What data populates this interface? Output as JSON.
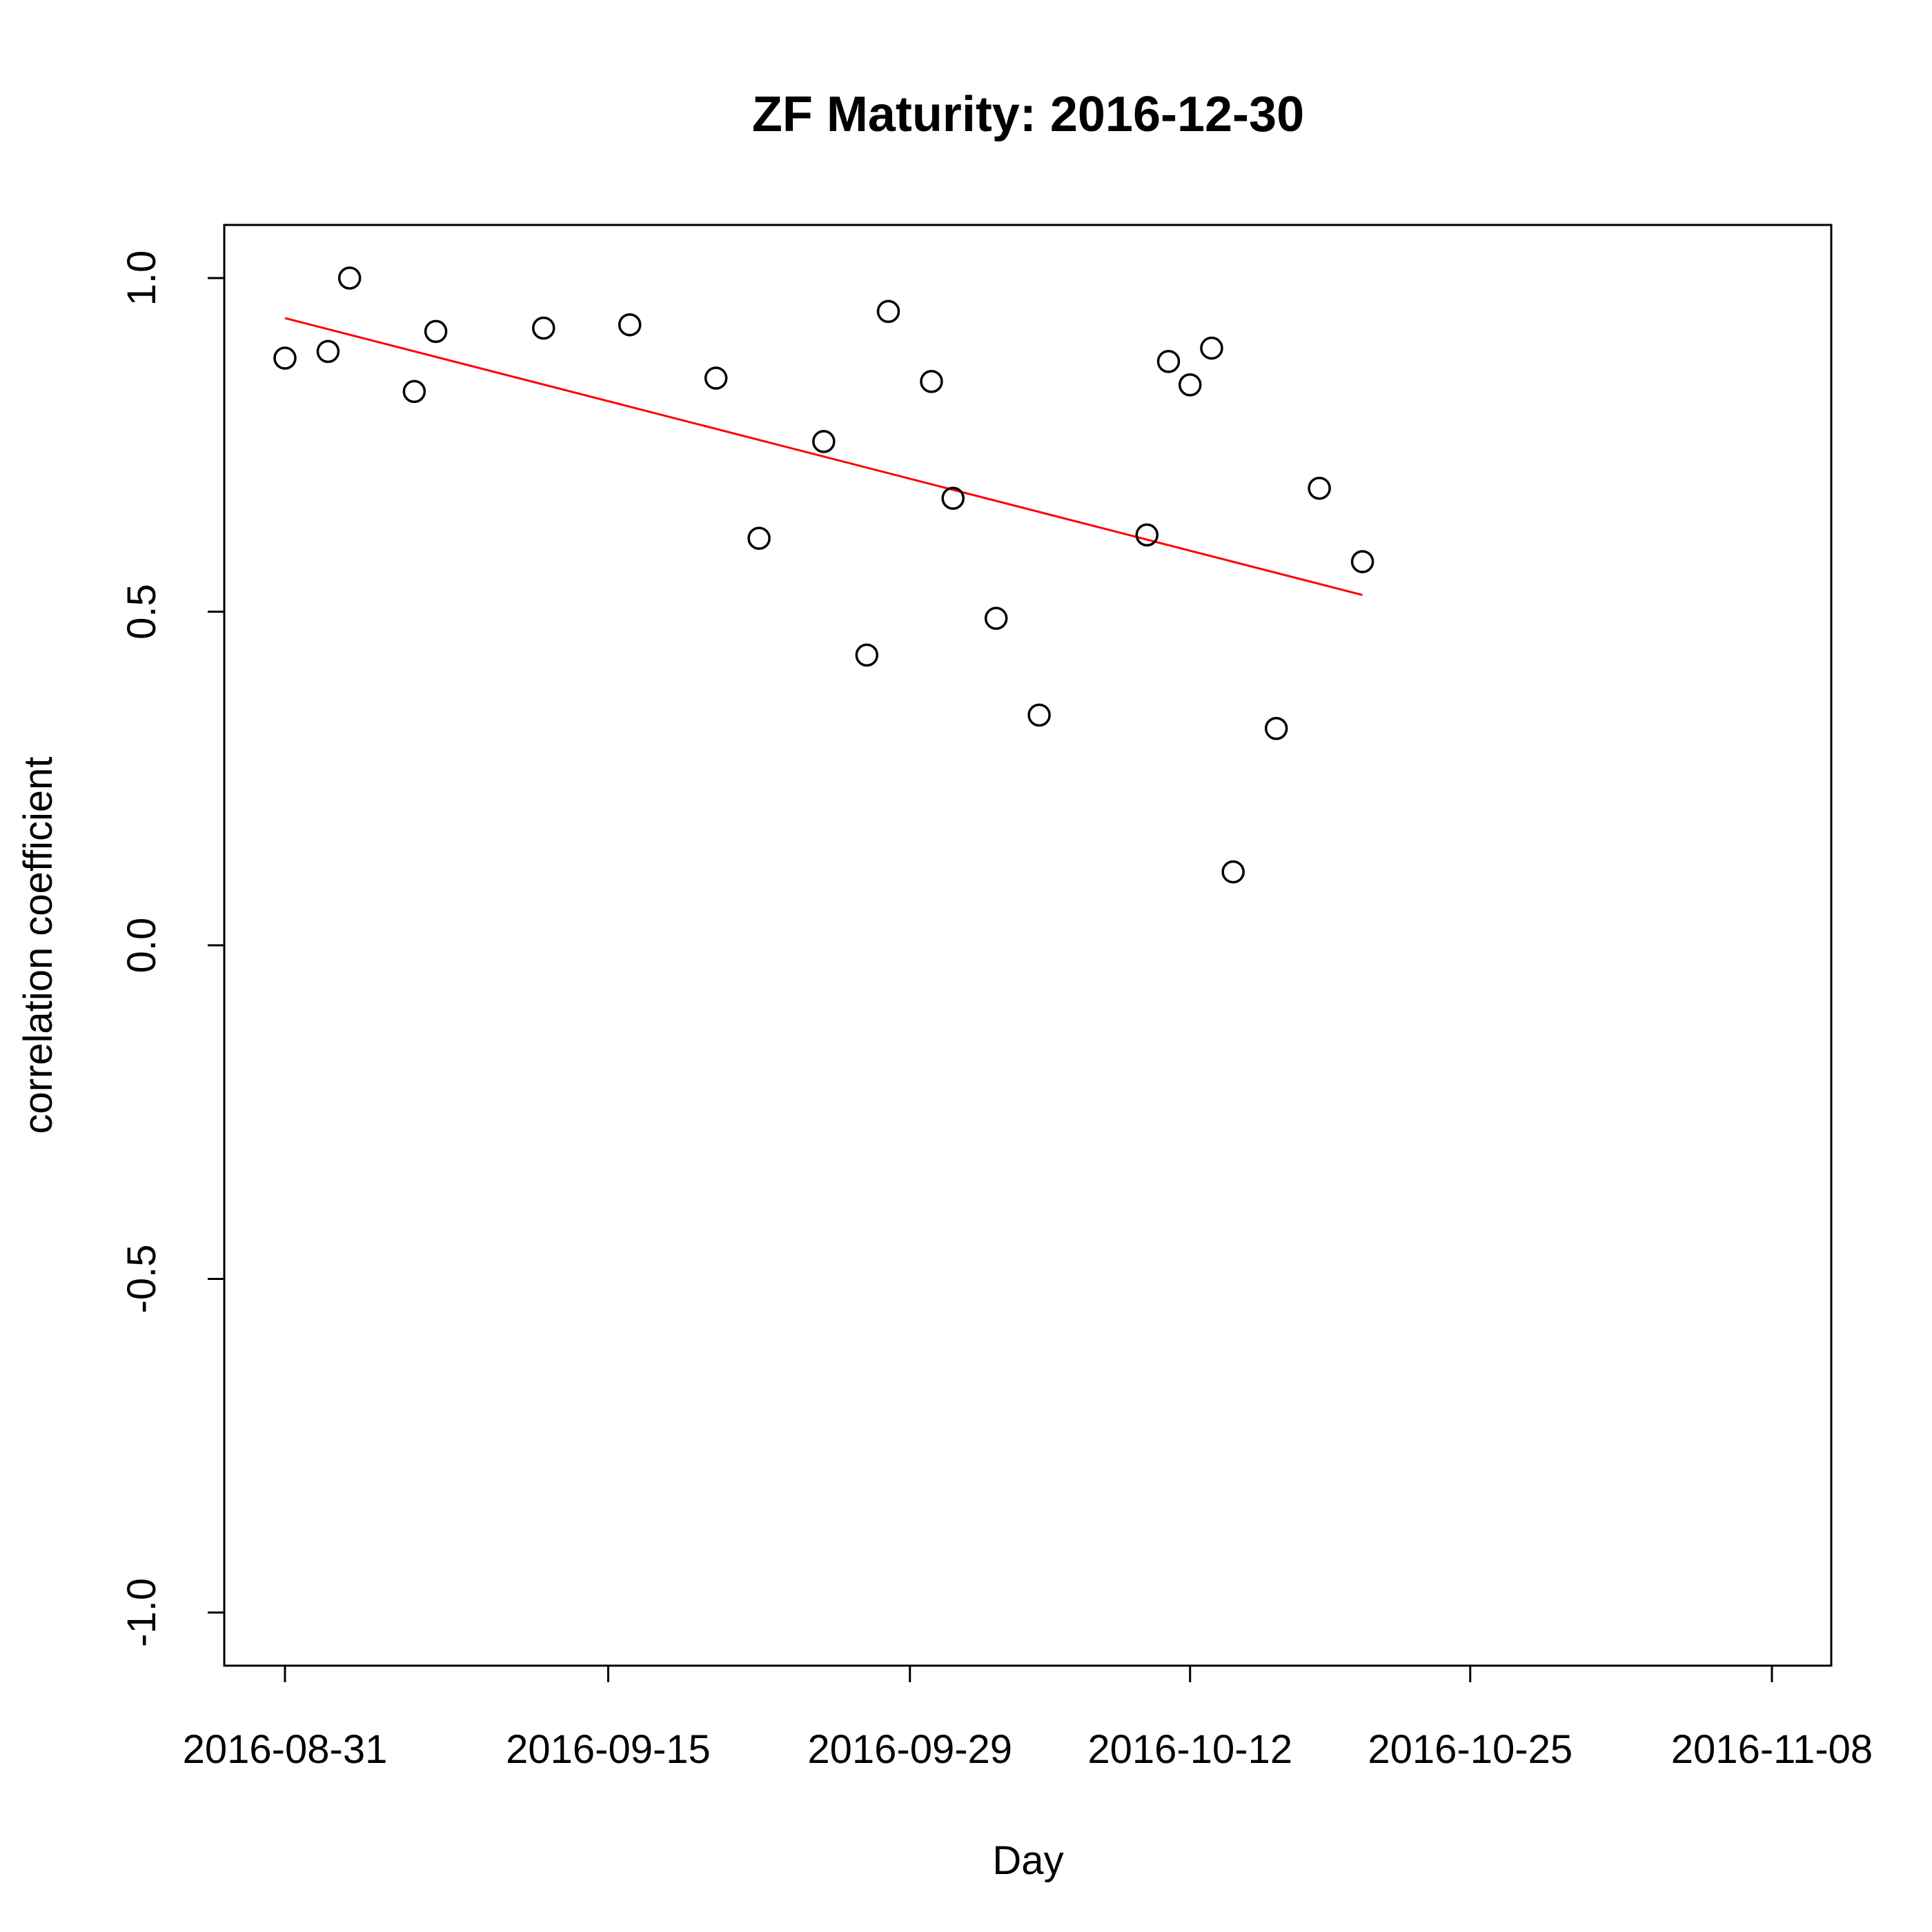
{
  "chart_data": {
    "type": "scatter",
    "title": "ZF Maturity: 2016-12-30",
    "xlabel": "Day",
    "ylabel": "correlation coefficient",
    "ylim": [
      -1.0,
      1.0
    ],
    "xlim": [
      "2016-08-29",
      "2016-11-11"
    ],
    "x_ticks": [
      "2016-08-31",
      "2016-09-15",
      "2016-09-29",
      "2016-10-12",
      "2016-10-25",
      "2016-11-08"
    ],
    "y_ticks": [
      {
        "value": -1.0,
        "label": "-1.0"
      },
      {
        "value": -0.5,
        "label": "-0.5"
      },
      {
        "value": 0.0,
        "label": "0.0"
      },
      {
        "value": 0.5,
        "label": "0.5"
      },
      {
        "value": 1.0,
        "label": "1.0"
      }
    ],
    "grid": false,
    "points": [
      {
        "x": "2016-08-31",
        "y": 0.88
      },
      {
        "x": "2016-09-02",
        "y": 0.89
      },
      {
        "x": "2016-09-03",
        "y": 1.0
      },
      {
        "x": "2016-09-06",
        "y": 0.83
      },
      {
        "x": "2016-09-07",
        "y": 0.92
      },
      {
        "x": "2016-09-12",
        "y": 0.925
      },
      {
        "x": "2016-09-16",
        "y": 0.93
      },
      {
        "x": "2016-09-20",
        "y": 0.85
      },
      {
        "x": "2016-09-22",
        "y": 0.61
      },
      {
        "x": "2016-09-25",
        "y": 0.755
      },
      {
        "x": "2016-09-27",
        "y": 0.435
      },
      {
        "x": "2016-09-28",
        "y": 0.95
      },
      {
        "x": "2016-09-30",
        "y": 0.845
      },
      {
        "x": "2016-10-01",
        "y": 0.67
      },
      {
        "x": "2016-10-03",
        "y": 0.49
      },
      {
        "x": "2016-10-05",
        "y": 0.345
      },
      {
        "x": "2016-10-10",
        "y": 0.615
      },
      {
        "x": "2016-10-11",
        "y": 0.875
      },
      {
        "x": "2016-10-12",
        "y": 0.84
      },
      {
        "x": "2016-10-13",
        "y": 0.895
      },
      {
        "x": "2016-10-14",
        "y": 0.11
      },
      {
        "x": "2016-10-16",
        "y": 0.325
      },
      {
        "x": "2016-10-18",
        "y": 0.685
      },
      {
        "x": "2016-10-20",
        "y": 0.575
      }
    ],
    "trend_line": {
      "color": "#ff0000",
      "start": {
        "x": "2016-08-31",
        "y": 0.94
      },
      "end": {
        "x": "2016-10-20",
        "y": 0.525
      }
    },
    "marker": "open-circle",
    "marker_color": "#000000"
  }
}
